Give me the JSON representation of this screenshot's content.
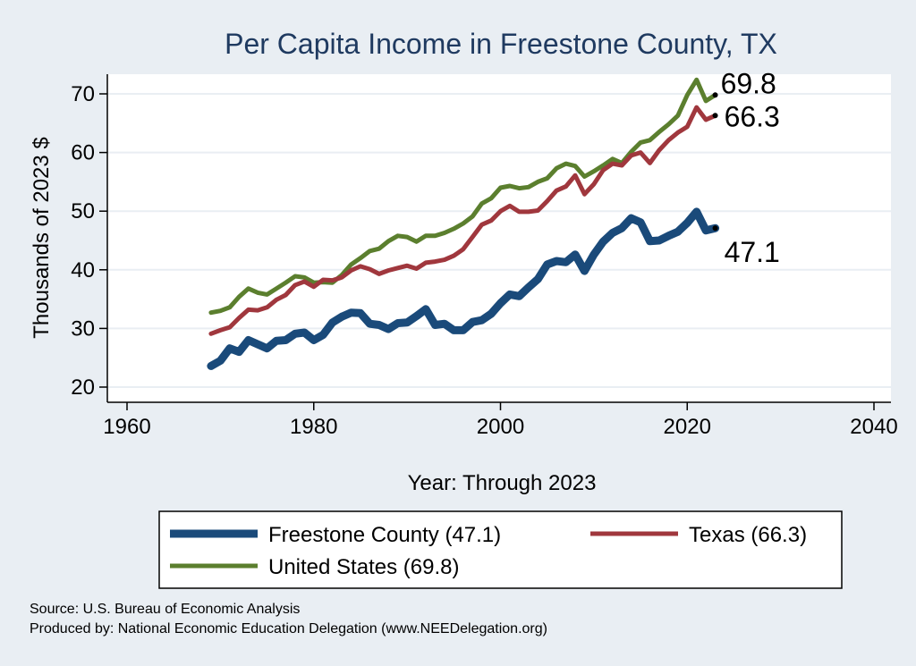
{
  "chart_data": {
    "type": "line",
    "title": "Per Capita Income in Freestone County, TX",
    "xlabel": "Year: Through 2023",
    "ylabel": "Thousands of 2023 $",
    "xlim": [
      1960,
      2040
    ],
    "ylim": [
      20,
      75
    ],
    "xticks": [
      1960,
      1980,
      2000,
      2020,
      2040
    ],
    "yticks": [
      20,
      30,
      40,
      50,
      60,
      70
    ],
    "grid": true,
    "legend_position": "bottom",
    "series": [
      {
        "name": "Freestone County (47.1)",
        "color": "#1a4a7a",
        "end_label": "47.1",
        "x": [
          1969,
          1970,
          1971,
          1972,
          1973,
          1974,
          1975,
          1976,
          1977,
          1978,
          1979,
          1980,
          1981,
          1982,
          1983,
          1984,
          1985,
          1986,
          1987,
          1988,
          1989,
          1990,
          1991,
          1992,
          1993,
          1994,
          1995,
          1996,
          1997,
          1998,
          1999,
          2000,
          2001,
          2002,
          2003,
          2004,
          2005,
          2006,
          2007,
          2008,
          2009,
          2010,
          2011,
          2012,
          2013,
          2014,
          2015,
          2016,
          2017,
          2018,
          2019,
          2020,
          2021,
          2022,
          2023
        ],
        "values": [
          23.6,
          24.5,
          26.6,
          26.0,
          28.0,
          27.3,
          26.6,
          27.9,
          28.0,
          29.1,
          29.3,
          28.0,
          28.9,
          31.0,
          32.0,
          32.7,
          32.6,
          30.8,
          30.6,
          29.9,
          30.9,
          31.0,
          32.1,
          33.3,
          30.6,
          30.8,
          29.7,
          29.7,
          31.1,
          31.4,
          32.5,
          34.3,
          35.8,
          35.5,
          37.0,
          38.4,
          40.9,
          41.5,
          41.3,
          42.6,
          39.8,
          42.6,
          44.8,
          46.3,
          47.1,
          48.8,
          48.1,
          44.9,
          45.0,
          45.8,
          46.5,
          48.0,
          49.9,
          46.7,
          47.1
        ]
      },
      {
        "name": "Texas (66.3)",
        "color": "#a0373d",
        "end_label": "66.3",
        "x": [
          1969,
          1970,
          1971,
          1972,
          1973,
          1974,
          1975,
          1976,
          1977,
          1978,
          1979,
          1980,
          1981,
          1982,
          1983,
          1984,
          1985,
          1986,
          1987,
          1988,
          1989,
          1990,
          1991,
          1992,
          1993,
          1994,
          1995,
          1996,
          1997,
          1998,
          1999,
          2000,
          2001,
          2002,
          2003,
          2004,
          2005,
          2006,
          2007,
          2008,
          2009,
          2010,
          2011,
          2012,
          2013,
          2014,
          2015,
          2016,
          2017,
          2018,
          2019,
          2020,
          2021,
          2022,
          2023
        ],
        "values": [
          29.1,
          29.7,
          30.2,
          31.8,
          33.2,
          33.1,
          33.6,
          34.9,
          35.7,
          37.4,
          38.0,
          37.1,
          38.3,
          38.2,
          38.7,
          39.9,
          40.6,
          40.1,
          39.3,
          39.9,
          40.3,
          40.7,
          40.2,
          41.2,
          41.4,
          41.7,
          42.4,
          43.5,
          45.6,
          47.7,
          48.4,
          50.0,
          50.9,
          49.9,
          49.9,
          50.1,
          51.7,
          53.5,
          54.2,
          56.1,
          52.9,
          54.6,
          57.0,
          58.1,
          57.8,
          59.5,
          60.0,
          58.2,
          60.4,
          62.1,
          63.4,
          64.4,
          67.7,
          65.6,
          66.3
        ]
      },
      {
        "name": "United States (69.8)",
        "color": "#5b7f2e",
        "end_label": "69.8",
        "x": [
          1969,
          1970,
          1971,
          1972,
          1973,
          1974,
          1975,
          1976,
          1977,
          1978,
          1979,
          1980,
          1981,
          1982,
          1983,
          1984,
          1985,
          1986,
          1987,
          1988,
          1989,
          1990,
          1991,
          1992,
          1993,
          1994,
          1995,
          1996,
          1997,
          1998,
          1999,
          2000,
          2001,
          2002,
          2003,
          2004,
          2005,
          2006,
          2007,
          2008,
          2009,
          2010,
          2011,
          2012,
          2013,
          2014,
          2015,
          2016,
          2017,
          2018,
          2019,
          2020,
          2021,
          2022,
          2023
        ],
        "values": [
          32.7,
          33.0,
          33.6,
          35.4,
          36.8,
          36.1,
          35.8,
          36.8,
          37.8,
          38.9,
          38.7,
          37.8,
          37.9,
          37.8,
          39.1,
          40.9,
          42.0,
          43.2,
          43.6,
          44.9,
          45.8,
          45.6,
          44.8,
          45.8,
          45.8,
          46.3,
          47.0,
          47.9,
          49.1,
          51.3,
          52.2,
          54.0,
          54.3,
          53.9,
          54.1,
          55.0,
          55.6,
          57.3,
          58.1,
          57.7,
          55.9,
          56.8,
          57.8,
          58.9,
          58.2,
          60.1,
          61.7,
          62.1,
          63.5,
          64.8,
          66.3,
          69.8,
          72.4,
          68.8,
          69.8
        ]
      }
    ],
    "legend_entries": [
      "Freestone County (47.1)",
      "Texas (66.3)",
      "United States (69.8)"
    ]
  },
  "notes": {
    "source": "Source: U.S. Bureau of Economic Analysis",
    "produced_by": "Produced by: National Economic Education Delegation (www.NEEDelegation.org)"
  }
}
